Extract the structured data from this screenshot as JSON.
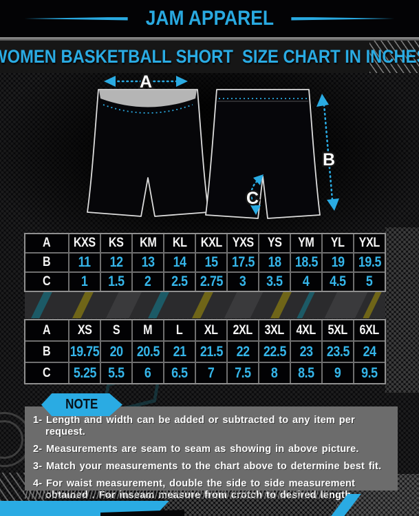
{
  "brand": "JAM APPAREL",
  "title": "WOMEN BASKETBALL SHORT  SIZE CHART IN INCHES",
  "colors": {
    "accent_cyan": "#29abe2",
    "table_value_cyan": "#35b5e9",
    "note_panel_gray": "#6c6c6c",
    "waistband_gray": "#b5b5b5",
    "background": "#0a0a0c"
  },
  "diagram": {
    "width_label": "A",
    "length_label": "B",
    "inseam_label": "C"
  },
  "tables": [
    {
      "rows": [
        [
          "A",
          "KXS",
          "KS",
          "KM",
          "KL",
          "KXL",
          "YXS",
          "YS",
          "YM",
          "YL",
          "YXL"
        ],
        [
          "B",
          "11",
          "12",
          "13",
          "14",
          "15",
          "17.5",
          "18",
          "18.5",
          "19",
          "19.5"
        ],
        [
          "C",
          "1",
          "1.5",
          "2",
          "2.5",
          "2.75",
          "3",
          "3.5",
          "4",
          "4.5",
          "5"
        ]
      ]
    },
    {
      "rows": [
        [
          "A",
          "XS",
          "S",
          "M",
          "L",
          "XL",
          "2XL",
          "3XL",
          "4XL",
          "5XL",
          "6XL"
        ],
        [
          "B",
          "19.75",
          "20",
          "20.5",
          "21",
          "21.5",
          "22",
          "22.5",
          "23",
          "23.5",
          "24"
        ],
        [
          "C",
          "5.25",
          "5.5",
          "6",
          "6.5",
          "7",
          "7.5",
          "8",
          "8.5",
          "9",
          "9.5"
        ]
      ]
    }
  ],
  "note": {
    "label": "NOTE",
    "items": [
      "1- Length and width can be added or subtracted to any item per request.",
      "2- Measurements are seam to seam  as showing in above picture.",
      "3- Match your measurements to the chart above to determine best fit.",
      "4- For waist measurement, double the side to side measurement obtained . For inseam measure from crotch to desired length."
    ]
  }
}
